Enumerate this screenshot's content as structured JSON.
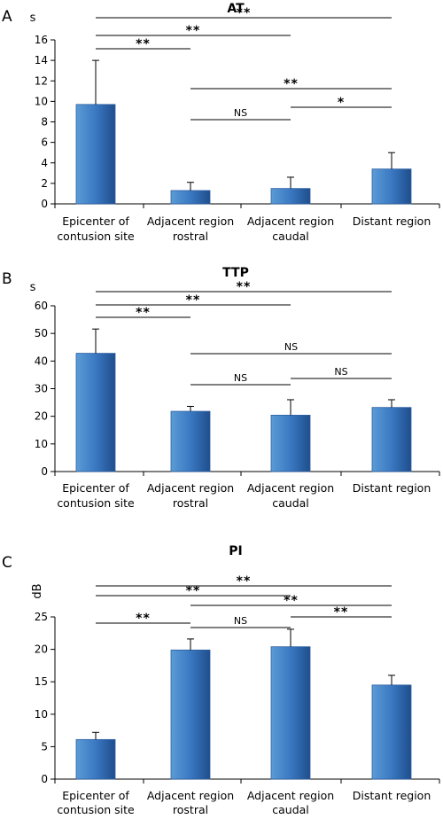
{
  "chart_data": [
    {
      "type": "bar",
      "panel": "A",
      "title": "AT",
      "ylabel": "s",
      "ylim": [
        0,
        16
      ],
      "yticks": [
        "0",
        "2",
        "4",
        "6",
        "8",
        "10",
        "12",
        "14",
        "16"
      ],
      "categories": [
        [
          "Epicenter of",
          "contusion site"
        ],
        [
          "Adjacent region",
          "rostral"
        ],
        [
          "Adjacent region",
          "caudal"
        ],
        [
          "Distant region",
          ""
        ]
      ],
      "values": [
        9.7,
        1.3,
        1.5,
        3.4
      ],
      "errors": [
        4.3,
        0.8,
        1.1,
        1.6
      ],
      "comparisons": [
        {
          "from": 0,
          "to": 3,
          "label": "**"
        },
        {
          "from": 0,
          "to": 2,
          "label": "**"
        },
        {
          "from": 0,
          "to": 1,
          "label": "**"
        },
        {
          "from": 1,
          "to": 3,
          "label": "**"
        },
        {
          "from": 2,
          "to": 3,
          "label": "*"
        },
        {
          "from": 1,
          "to": 2,
          "label": "NS"
        }
      ]
    },
    {
      "type": "bar",
      "panel": "B",
      "title": "TTP",
      "ylabel": "s",
      "ylim": [
        0,
        60
      ],
      "yticks": [
        "0",
        "10",
        "20",
        "30",
        "40",
        "50",
        "60"
      ],
      "categories": [
        [
          "Epicenter of",
          "contusion site"
        ],
        [
          "Adjacent region",
          "rostral"
        ],
        [
          "Adjacent region",
          "caudal"
        ],
        [
          "Distant region",
          ""
        ]
      ],
      "values": [
        42.8,
        21.8,
        20.4,
        23.2
      ],
      "errors": [
        8.8,
        1.8,
        5.6,
        2.8
      ],
      "comparisons": [
        {
          "from": 0,
          "to": 3,
          "label": "**"
        },
        {
          "from": 0,
          "to": 2,
          "label": "**"
        },
        {
          "from": 0,
          "to": 1,
          "label": "**"
        },
        {
          "from": 1,
          "to": 3,
          "label": "NS"
        },
        {
          "from": 2,
          "to": 3,
          "label": "NS"
        },
        {
          "from": 1,
          "to": 2,
          "label": "NS"
        }
      ]
    },
    {
      "type": "bar",
      "panel": "C",
      "title": "PI",
      "ylabel": "dB",
      "ylim": [
        0,
        25
      ],
      "yticks": [
        "0",
        "5",
        "10",
        "15",
        "20",
        "25"
      ],
      "categories": [
        [
          "Epicenter of",
          "contusion site"
        ],
        [
          "Adjacent region",
          "rostral"
        ],
        [
          "Adjacent region",
          "caudal"
        ],
        [
          "Distant region",
          ""
        ]
      ],
      "values": [
        6.1,
        19.9,
        20.4,
        14.5
      ],
      "errors": [
        1.1,
        1.7,
        2.7,
        1.5
      ],
      "comparisons": [
        {
          "from": 0,
          "to": 3,
          "label": "**"
        },
        {
          "from": 0,
          "to": 2,
          "label": "**"
        },
        {
          "from": 1,
          "to": 3,
          "label": "**"
        },
        {
          "from": 2,
          "to": 3,
          "label": "**"
        },
        {
          "from": 0,
          "to": 1,
          "label": "**"
        },
        {
          "from": 1,
          "to": 2,
          "label": "NS"
        }
      ]
    }
  ],
  "colors": {
    "bar_top": "#5b9bd5",
    "bar_mid": "#3a78c2",
    "bar_bottom": "#1f4e8c",
    "bar_edge": "#2b5ea1"
  }
}
